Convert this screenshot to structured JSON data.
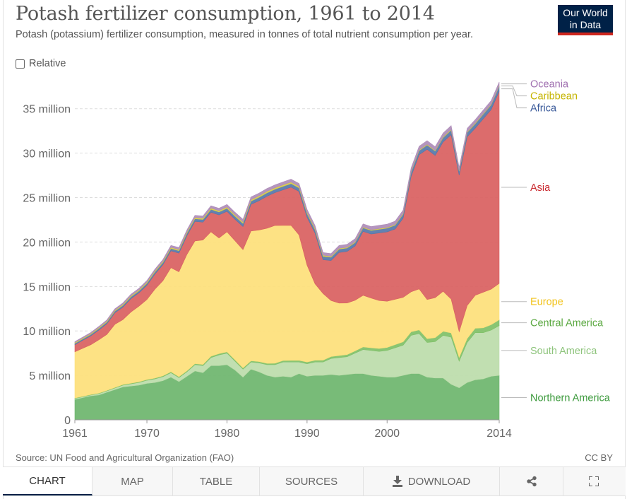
{
  "header": {
    "title": "Potash fertilizer consumption, 1961 to 2014",
    "subtitle": "Potash (potassium) fertilizer consumption, measured in tonnes of total nutrient consumption per year.",
    "logo_line1": "Our World",
    "logo_line2": "in Data"
  },
  "controls": {
    "relative_label": "Relative"
  },
  "footer": {
    "source": "Source: UN Food and Agricultural Organization (FAO)",
    "license": "CC BY"
  },
  "tabs": [
    {
      "label": "CHART",
      "icon": ""
    },
    {
      "label": "MAP",
      "icon": ""
    },
    {
      "label": "TABLE",
      "icon": ""
    },
    {
      "label": "SOURCES",
      "icon": ""
    },
    {
      "label": "DOWNLOAD",
      "icon": "download-icon"
    },
    {
      "label": "",
      "icon": "share-icon"
    },
    {
      "label": "",
      "icon": "fullscreen-icon"
    }
  ],
  "chart_data": {
    "type": "area",
    "stacked": true,
    "x": [
      1961,
      1962,
      1963,
      1964,
      1965,
      1966,
      1967,
      1968,
      1969,
      1970,
      1971,
      1972,
      1973,
      1974,
      1975,
      1976,
      1977,
      1978,
      1979,
      1980,
      1981,
      1982,
      1983,
      1984,
      1985,
      1986,
      1987,
      1988,
      1989,
      1990,
      1991,
      1992,
      1993,
      1994,
      1995,
      1996,
      1997,
      1998,
      1999,
      2000,
      2001,
      2002,
      2003,
      2004,
      2005,
      2006,
      2007,
      2008,
      2009,
      2010,
      2011,
      2012,
      2013,
      2014
    ],
    "xticks": [
      "1961",
      "1970",
      "1980",
      "1990",
      "2000",
      "2014"
    ],
    "xtick_values": [
      1961,
      1970,
      1980,
      1990,
      2000,
      2014
    ],
    "yticks": [
      "0",
      "5 million",
      "10 million",
      "15 million",
      "20 million",
      "25 million",
      "30 million",
      "35 million"
    ],
    "ytick_values": [
      0,
      5000000,
      10000000,
      15000000,
      20000000,
      25000000,
      30000000,
      35000000
    ],
    "ylim": [
      0,
      38000000
    ],
    "grid": true,
    "colors": {
      "Northern America": "#6db56d",
      "South America": "#bcdcaa",
      "Central America": "#7fc067",
      "Europe": "#fde07a",
      "Asia": "#d96060",
      "Africa": "#5577aa",
      "Caribbean": "#d8cc44",
      "Oceania": "#ae8cb8"
    },
    "label_colors": {
      "Northern America": "#3c9a3c",
      "South America": "#8ec47c",
      "Central America": "#5aa840",
      "Europe": "#f2c31b",
      "Asia": "#c9272d",
      "Africa": "#3a5a9a",
      "Caribbean": "#c5b400",
      "Oceania": "#a070b0"
    },
    "series": [
      {
        "name": "Northern America",
        "values": [
          2300000,
          2500000,
          2700000,
          2800000,
          3100000,
          3400000,
          3700000,
          3800000,
          3900000,
          4100000,
          4200000,
          4400000,
          4800000,
          4300000,
          4900000,
          5500000,
          5300000,
          6100000,
          6100000,
          6200000,
          5600000,
          4800000,
          5700000,
          5400000,
          5000000,
          4800000,
          4900000,
          4800000,
          5200000,
          4900000,
          5000000,
          5000000,
          5100000,
          5000000,
          5100000,
          5200000,
          5200000,
          5000000,
          4900000,
          4800000,
          4800000,
          5000000,
          5200000,
          5200000,
          4800000,
          4700000,
          4700000,
          4000000,
          3600000,
          4200000,
          4500000,
          4600000,
          4900000,
          5000000
        ]
      },
      {
        "name": "South America",
        "values": [
          100000,
          100000,
          100000,
          150000,
          150000,
          180000,
          200000,
          250000,
          300000,
          350000,
          400000,
          450000,
          500000,
          450000,
          500000,
          700000,
          800000,
          900000,
          1200000,
          1300000,
          1000000,
          900000,
          800000,
          1000000,
          1200000,
          1400000,
          1600000,
          1700000,
          1300000,
          1400000,
          1500000,
          1500000,
          1800000,
          2000000,
          2000000,
          2300000,
          2700000,
          2800000,
          2800000,
          3000000,
          3300000,
          3400000,
          4300000,
          4500000,
          3900000,
          4100000,
          4800000,
          5300000,
          3000000,
          4500000,
          5300000,
          5200000,
          5200000,
          5600000
        ]
      },
      {
        "name": "Central America",
        "values": [
          50000,
          50000,
          50000,
          50000,
          60000,
          60000,
          70000,
          70000,
          80000,
          80000,
          90000,
          100000,
          110000,
          100000,
          110000,
          120000,
          130000,
          150000,
          150000,
          150000,
          150000,
          140000,
          140000,
          150000,
          150000,
          160000,
          170000,
          180000,
          190000,
          200000,
          200000,
          210000,
          220000,
          230000,
          240000,
          250000,
          300000,
          300000,
          320000,
          340000,
          360000,
          380000,
          400000,
          420000,
          430000,
          440000,
          460000,
          480000,
          420000,
          450000,
          500000,
          550000,
          600000,
          650000
        ]
      },
      {
        "name": "Europe",
        "values": [
          5200000,
          5400000,
          5600000,
          6000000,
          6300000,
          7100000,
          7300000,
          8000000,
          8500000,
          9000000,
          10000000,
          10700000,
          11700000,
          11800000,
          13100000,
          13800000,
          14000000,
          14000000,
          13000000,
          13500000,
          13400000,
          13300000,
          14600000,
          14800000,
          15200000,
          15500000,
          15200000,
          15200000,
          14100000,
          10900000,
          8600000,
          7500000,
          6300000,
          5900000,
          5800000,
          5700000,
          5800000,
          5600000,
          5400000,
          5200000,
          5100000,
          5000000,
          4500000,
          4600000,
          4400000,
          4500000,
          4500000,
          3800000,
          2900000,
          3700000,
          3700000,
          4000000,
          4000000,
          4100000
        ]
      },
      {
        "name": "Asia",
        "values": [
          800000,
          900000,
          1000000,
          1100000,
          1200000,
          1300000,
          1400000,
          1500000,
          1500000,
          1600000,
          1700000,
          1800000,
          1900000,
          2100000,
          2100000,
          2200000,
          2000000,
          2200000,
          2600000,
          2300000,
          2400000,
          2600000,
          3000000,
          3300000,
          3600000,
          3700000,
          4000000,
          4300000,
          4900000,
          5400000,
          5700000,
          3800000,
          4500000,
          5700000,
          5800000,
          6100000,
          7200000,
          7200000,
          7600000,
          7800000,
          7900000,
          8900000,
          13000000,
          15100000,
          16900000,
          16000000,
          16800000,
          18500000,
          17600000,
          19000000,
          18800000,
          19500000,
          20200000,
          21600000
        ]
      },
      {
        "name": "Africa",
        "values": [
          150000,
          150000,
          160000,
          170000,
          180000,
          190000,
          200000,
          210000,
          220000,
          230000,
          240000,
          250000,
          260000,
          270000,
          280000,
          290000,
          300000,
          320000,
          330000,
          340000,
          350000,
          350000,
          360000,
          370000,
          380000,
          380000,
          390000,
          390000,
          400000,
          400000,
          390000,
          380000,
          370000,
          370000,
          380000,
          390000,
          400000,
          400000,
          410000,
          420000,
          430000,
          440000,
          450000,
          460000,
          470000,
          480000,
          490000,
          500000,
          450000,
          480000,
          500000,
          520000,
          540000,
          560000
        ]
      },
      {
        "name": "Caribbean",
        "values": [
          100000,
          100000,
          100000,
          110000,
          110000,
          110000,
          120000,
          120000,
          120000,
          130000,
          130000,
          130000,
          140000,
          140000,
          140000,
          150000,
          150000,
          150000,
          150000,
          160000,
          160000,
          160000,
          160000,
          170000,
          170000,
          170000,
          170000,
          170000,
          170000,
          160000,
          150000,
          130000,
          100000,
          90000,
          90000,
          90000,
          90000,
          90000,
          90000,
          90000,
          90000,
          90000,
          90000,
          90000,
          90000,
          90000,
          90000,
          90000,
          80000,
          80000,
          80000,
          80000,
          80000,
          80000
        ]
      },
      {
        "name": "Oceania",
        "values": [
          100000,
          110000,
          120000,
          130000,
          140000,
          150000,
          160000,
          170000,
          170000,
          180000,
          190000,
          200000,
          210000,
          220000,
          230000,
          240000,
          250000,
          260000,
          270000,
          280000,
          290000,
          300000,
          310000,
          310000,
          320000,
          320000,
          330000,
          330000,
          330000,
          320000,
          310000,
          300000,
          310000,
          320000,
          330000,
          340000,
          350000,
          350000,
          360000,
          360000,
          370000,
          380000,
          390000,
          400000,
          410000,
          410000,
          420000,
          420000,
          350000,
          370000,
          380000,
          380000,
          390000,
          400000
        ]
      }
    ],
    "legend_order": [
      "Oceania",
      "Caribbean",
      "Africa",
      "Asia",
      "Europe",
      "Central America",
      "South America",
      "Northern America"
    ]
  }
}
